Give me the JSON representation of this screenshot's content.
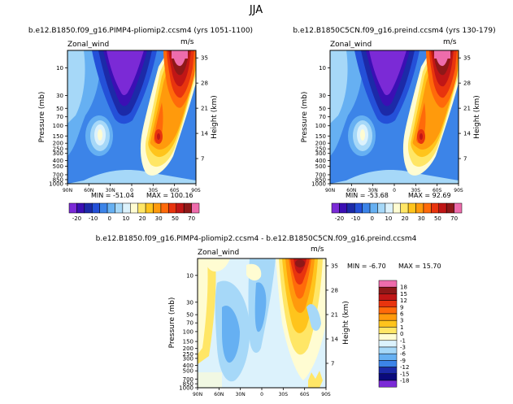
{
  "title": "JJA",
  "colors": {
    "cmap1": [
      "#7b2ad6",
      "#3b0fb4",
      "#1c2aa8",
      "#2450d8",
      "#3c84e8",
      "#66b0f2",
      "#a6d8f8",
      "#dcf2fc",
      "#fffcd2",
      "#ffe666",
      "#ffc41c",
      "#ff9a0c",
      "#ff6a0a",
      "#e8340e",
      "#c01616",
      "#8e1818",
      "#ee6cac"
    ],
    "cmap2": [
      "#7b2ad6",
      "#0a0a7c",
      "#1c2aa8",
      "#3c84e8",
      "#66b0f2",
      "#a6d8f8",
      "#dcf2fc",
      "#fffcd2",
      "#ffe666",
      "#ffc41c",
      "#ff9a0c",
      "#ff6a0a",
      "#e8340e",
      "#c01616",
      "#8e1818",
      "#ee6cac"
    ]
  },
  "chart_data": [
    {
      "type": "contour",
      "id": "panel1",
      "title": "b.e12.B1850.f09_g16.PIMP4-pliomip2.ccsm4 (yrs 1051-1100)",
      "variable": "Zonal_wind",
      "units": "m/s",
      "xlabel": "",
      "ylabel": "Pressure (mb)",
      "ylabel_right": "Height (km)",
      "x_ticks": [
        "90N",
        "60N",
        "30N",
        "0",
        "30S",
        "60S",
        "90S"
      ],
      "y_ticks": [
        "10",
        "30",
        "50",
        "70",
        "100",
        "150",
        "200",
        "250",
        "300",
        "400",
        "500",
        "700",
        "850",
        "1000"
      ],
      "y_ticks_right": [
        "35",
        "28",
        "21",
        "14",
        "7"
      ],
      "min": "-51.04",
      "max": "100.16",
      "min_label": "MIN = -51.04",
      "max_label": "MAX = 100.16",
      "colorbar_ticks": [
        "-20",
        "-10",
        "0",
        "10",
        "20",
        "30",
        "50",
        "70"
      ],
      "colorbar_title": ""
    },
    {
      "type": "contour",
      "id": "panel2",
      "title": "b.e12.B1850C5CN.f09_g16.preind.ccsm4 (yrs 130-179)",
      "variable": "Zonal_wind",
      "units": "m/s",
      "xlabel": "",
      "ylabel": "Pressure (mb)",
      "ylabel_right": "Height (km)",
      "x_ticks": [
        "90N",
        "60N",
        "30N",
        "0",
        "30S",
        "60S",
        "90S"
      ],
      "y_ticks": [
        "10",
        "30",
        "50",
        "70",
        "100",
        "150",
        "200",
        "250",
        "300",
        "400",
        "500",
        "700",
        "850",
        "1000"
      ],
      "y_ticks_right": [
        "35",
        "28",
        "21",
        "14",
        "7"
      ],
      "min": "-53.68",
      "max": "92.69",
      "min_label": "MIN = -53.68",
      "max_label": "MAX = 92.69",
      "colorbar_ticks": [
        "-20",
        "-10",
        "0",
        "10",
        "20",
        "30",
        "50",
        "70"
      ]
    },
    {
      "type": "contour",
      "id": "panel3",
      "title": "b.e12.B1850.f09_g16.PIMP4-pliomip2.ccsm4 - b.e12.B1850C5CN.f09_g16.preind.ccsm4",
      "variable": "Zonal_wind",
      "units": "m/s",
      "ylabel": "Pressure (mb)",
      "ylabel_right": "Height (km)",
      "x_ticks": [
        "90N",
        "60N",
        "30N",
        "0",
        "30S",
        "60S",
        "90S"
      ],
      "y_ticks": [
        "10",
        "30",
        "50",
        "70",
        "100",
        "150",
        "200",
        "250",
        "300",
        "400",
        "500",
        "700",
        "850",
        "1000"
      ],
      "y_ticks_right": [
        "35",
        "28",
        "21",
        "14",
        "7"
      ],
      "min": "-6.70",
      "max": "15.70",
      "min_label": "MIN =  -6.70",
      "max_label": "MAX =  15.70",
      "colorbar_ticks": [
        "18",
        "15",
        "12",
        "9",
        "6",
        "3",
        "1",
        "0",
        "-1",
        "-3",
        "-6",
        "-9",
        "-12",
        "-15",
        "-18"
      ]
    }
  ]
}
